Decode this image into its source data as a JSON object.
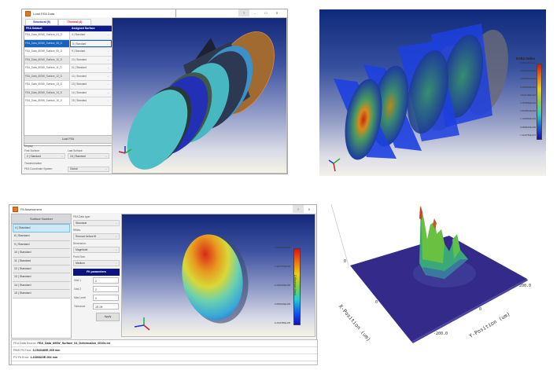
{
  "load_fea_window": {
    "title": "Load FEA Data",
    "tabs": [
      {
        "label": "Structural (9)",
        "color": "#1b2aa8"
      },
      {
        "label": "Thermal (4)",
        "color": "#e02020"
      }
    ],
    "grid_headers": [
      "FEA Dataset",
      "Assigned Surface"
    ],
    "rows": [
      {
        "dataset": "FEA_Data_800W_Surface_04_D",
        "surface": "4 | Standard"
      },
      {
        "dataset": "FEA_Data_800W_Surface_08_D",
        "surface": "8 | Standard"
      },
      {
        "dataset": "FEA_Data_800W_Surface_09_D",
        "surface": "9 | Standard"
      },
      {
        "dataset": "FEA_Data_800W_Surface_10_D",
        "surface": "10 | Standard"
      },
      {
        "dataset": "FEA_Data_800W_Surface_11_D",
        "surface": "11 | Standard"
      },
      {
        "dataset": "FEA_Data_800W_Surface_12_D",
        "surface": "12 | Standard"
      },
      {
        "dataset": "FEA_Data_800W_Surface_13_D",
        "surface": "13 | Standard"
      },
      {
        "dataset": "FEA_Data_800W_Surface_14_D",
        "surface": "14 | Standard"
      },
      {
        "dataset": "FEA_Data_800W_Surface_15_D",
        "surface": "15 | Standard"
      }
    ],
    "selected_row": 1,
    "load_button": "Load FEA",
    "display_label": "Display",
    "first_surface_label": "First Surface:",
    "first_surface_value": "0 | Standard",
    "last_surface_label": "Last Surface:",
    "last_surface_value": "16 | Standard",
    "transformation_label": "Transformation",
    "coord_system_label": "FEA Coordinate System:",
    "coord_system_value": "Global",
    "title_buttons": {
      "help": "?",
      "minimize": "–",
      "maximize": "☐",
      "close": "✕"
    }
  },
  "delta_index_view": {
    "colorbar_title": "Delta Index",
    "colorbar_ticks": [
      "5.0882380E-004",
      "4.5229720E-004",
      "3.9566870E-004",
      "3.3904020E-004",
      "2.8241190E-004",
      "2.2578350E-004",
      "1.6915510E-004",
      "1.1252660E-004",
      "5.5898020E-005",
      "-7.3019750E-007"
    ]
  },
  "fit_assessment_window": {
    "title": "Fit Assessment",
    "surface_list_header": "Surface Number",
    "surfaces": [
      "4 | Standard",
      "8 | Standard",
      "9 | Standard",
      "10 | Standard",
      "11 | Standard",
      "12 | Standard",
      "13 | Standard",
      "14 | Standard",
      "15 | Standard"
    ],
    "selected_surface": 0,
    "fea_data_type_label": "FEA Data type:",
    "fea_data_type_value": "Structural",
    "rbms_label": "RBMs:",
    "rbms_value": "Remove before fit",
    "dimension_label": "Dimension:",
    "dimension_value": "Magnitude",
    "point_size_label": "Point Size:",
    "point_size_value": "Medium",
    "fit_params_header": "Fit parameters",
    "fit_params": [
      {
        "label": "Grid 1",
        "value": "2"
      },
      {
        "label": "Grid 2",
        "value": "2"
      },
      {
        "label": "Max Level",
        "value": "0"
      },
      {
        "label": "Tolerance",
        "value": "1E-09"
      }
    ],
    "apply_button": "Apply",
    "colorbar_title": "Difference (mm)",
    "colorbar_ticks": [
      "4.5416682E-005",
      "1.3427570E-005",
      "-2.2362248E-005",
      "-5.8052036E-005",
      "-9.4541585E-005"
    ],
    "status": {
      "source_label": "FEA Data Source:",
      "source_value": "FEA_Data_800W_Surface_04_Deformation_0010s.txt",
      "rms_label": "RMS Fit Error:",
      "rms_value": "3.2540480E-005 mm",
      "pv_label": "PV Fit Error:",
      "pv_value": "1.4395820E-004 mm"
    },
    "title_buttons": {
      "help": "?",
      "close": "✕"
    }
  },
  "surface_plot": {
    "z_tick": "0",
    "x_axis_label": "X-Position (um)",
    "y_axis_label": "Y-Position (um)",
    "x_ticks": [
      "0"
    ],
    "y_ticks": [
      "-200.0",
      "0",
      "200.0"
    ]
  }
}
